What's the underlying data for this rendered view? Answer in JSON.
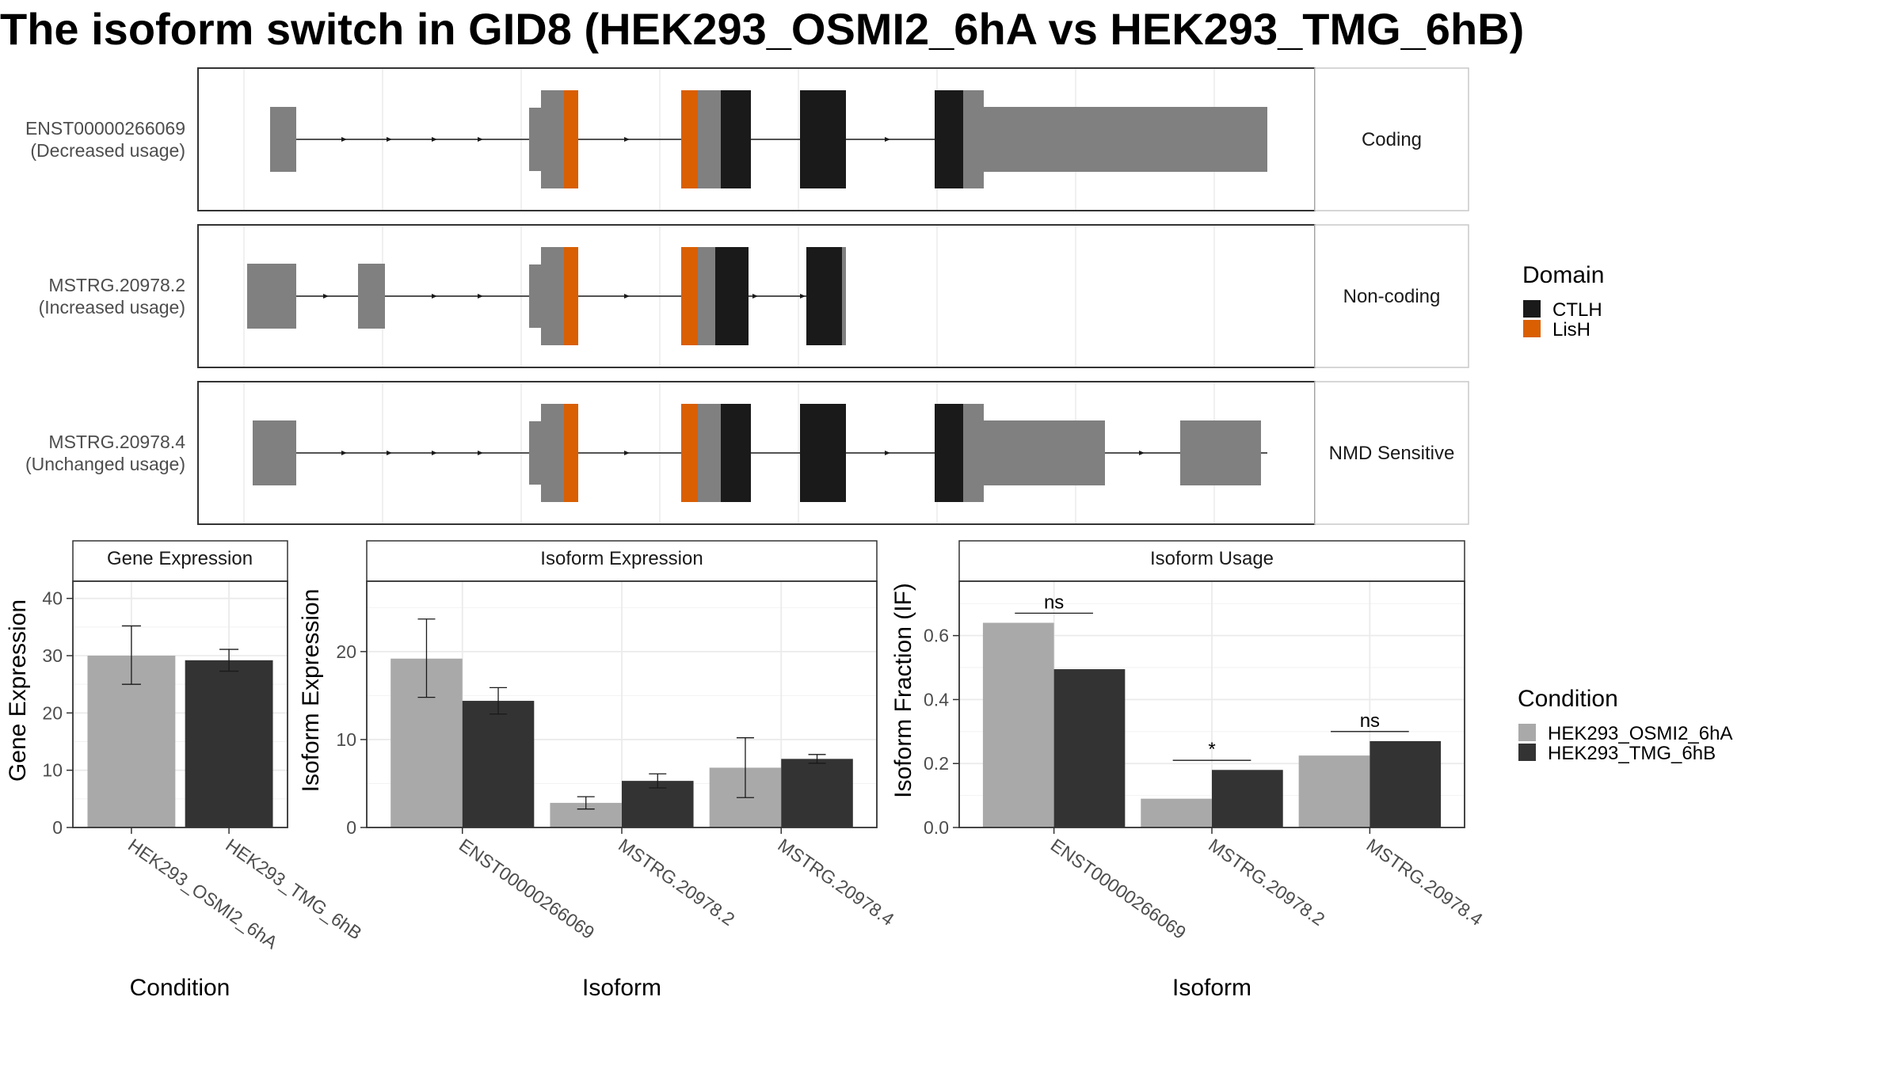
{
  "title": "The isoform switch in GID8 (HEK293_OSMI2_6hA vs HEK293_TMG_6hB)",
  "colors": {
    "exon": "#808080",
    "CTLH": "#1a1a1a",
    "LisH": "#d95f02",
    "condA": "#a9a9a9",
    "condB": "#333333"
  },
  "transcripts": [
    {
      "id": "ENST00000266069",
      "usage": "(Decreased usage)",
      "class": "Coding"
    },
    {
      "id": "MSTRG.20978.2",
      "usage": "(Increased usage)",
      "class": "Non-coding"
    },
    {
      "id": "MSTRG.20978.4",
      "usage": "(Unchanged usage)",
      "class": "NMD Sensitive"
    }
  ],
  "domain_legend": {
    "title": "Domain",
    "items": [
      {
        "label": "CTLH",
        "color": "#1a1a1a"
      },
      {
        "label": "LisH",
        "color": "#d95f02"
      }
    ]
  },
  "condition_legend": {
    "title": "Condition",
    "items": [
      {
        "label": "HEK293_OSMI2_6hA",
        "color": "#a9a9a9"
      },
      {
        "label": "HEK293_TMG_6hB",
        "color": "#333333"
      }
    ]
  },
  "chart_data": [
    {
      "type": "bar",
      "panel": "Gene Expression",
      "xlabel": "Condition",
      "ylabel": "Gene Expression",
      "ylim": [
        0,
        43
      ],
      "yticks": [
        0,
        10,
        20,
        30,
        40
      ],
      "categories": [
        "HEK293_OSMI2_6hA",
        "HEK293_TMG_6hB"
      ],
      "values": [
        30.0,
        29.2
      ],
      "err_low": [
        25.0,
        27.3
      ],
      "err_high": [
        35.2,
        31.1
      ],
      "colors": [
        "#a9a9a9",
        "#333333"
      ]
    },
    {
      "type": "bar",
      "panel": "Isoform Expression",
      "xlabel": "Isoform",
      "ylabel": "Isoform Expression",
      "ylim": [
        0,
        28
      ],
      "yticks": [
        0,
        10,
        20
      ],
      "categories": [
        "ENST00000266069",
        "MSTRG.20978.2",
        "MSTRG.20978.4"
      ],
      "series": [
        {
          "name": "HEK293_OSMI2_6hA",
          "values": [
            19.2,
            2.8,
            6.8
          ],
          "err_low": [
            14.8,
            2.1,
            3.4
          ],
          "err_high": [
            23.7,
            3.5,
            10.2
          ]
        },
        {
          "name": "HEK293_TMG_6hB",
          "values": [
            14.4,
            5.3,
            7.8
          ],
          "err_low": [
            12.9,
            4.5,
            7.3
          ],
          "err_high": [
            15.9,
            6.1,
            8.3
          ]
        }
      ]
    },
    {
      "type": "bar",
      "panel": "Isoform Usage",
      "xlabel": "Isoform",
      "ylabel": "Isoform Fraction (IF)",
      "ylim": [
        0,
        0.77
      ],
      "yticks": [
        "0.0",
        "0.2",
        "0.4",
        "0.6"
      ],
      "categories": [
        "ENST00000266069",
        "MSTRG.20978.2",
        "MSTRG.20978.4"
      ],
      "series": [
        {
          "name": "HEK293_OSMI2_6hA",
          "values": [
            0.64,
            0.09,
            0.225
          ]
        },
        {
          "name": "HEK293_TMG_6hB",
          "values": [
            0.495,
            0.18,
            0.27
          ]
        }
      ],
      "significance": [
        {
          "label": "ns",
          "level": 0.67
        },
        {
          "label": "*",
          "level": 0.21
        },
        {
          "label": "ns",
          "level": 0.3
        }
      ]
    }
  ]
}
